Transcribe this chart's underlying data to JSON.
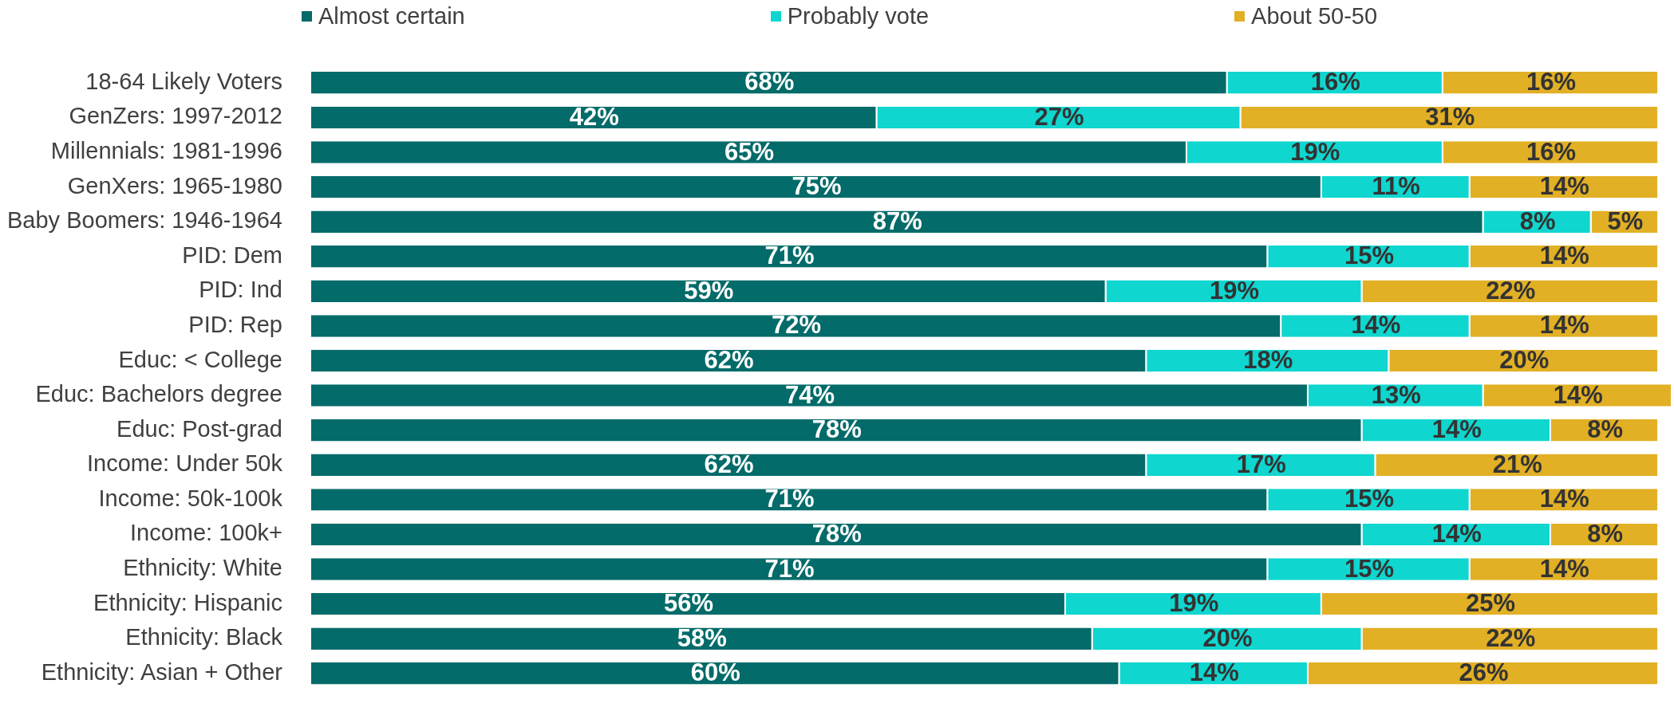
{
  "chart_data": {
    "type": "bar",
    "orientation": "horizontal",
    "stacked": true,
    "legend": "top",
    "tick_labels": "y",
    "xlim": [
      0,
      101
    ],
    "categories": [
      "18-64 Likely Voters",
      "GenZers: 1997-2012",
      "Millennials: 1981-1996",
      "GenXers: 1965-1980",
      "Baby Boomers: 1946-1964",
      "PID: Dem",
      "PID: Ind",
      "PID: Rep",
      "Educ: < College",
      "Educ: Bachelors degree",
      "Educ: Post-grad",
      "Income: Under 50k",
      "Income: 50k-100k",
      "Income: 100k+",
      "Ethnicity: White",
      "Ethnicity: Hispanic",
      "Ethnicity: Black",
      "Ethnicity: Asian + Other"
    ],
    "series": [
      {
        "name": "Almost certain",
        "color": "#036b69",
        "values": [
          68,
          42,
          65,
          75,
          87,
          71,
          59,
          72,
          62,
          74,
          78,
          62,
          71,
          78,
          71,
          56,
          58,
          60
        ],
        "value_labels": [
          "68%",
          "42%",
          "65%",
          "75%",
          "87%",
          "71%",
          "59%",
          "72%",
          "62%",
          "74%",
          "78%",
          "62%",
          "71%",
          "78%",
          "71%",
          "56%",
          "58%",
          "60%"
        ]
      },
      {
        "name": "Probably vote",
        "color": "#0fd6cf",
        "values": [
          16,
          27,
          19,
          11,
          8,
          15,
          19,
          14,
          18,
          13,
          14,
          17,
          15,
          14,
          15,
          19,
          20,
          14
        ],
        "value_labels": [
          "16%",
          "27%",
          "19%",
          "11%",
          "8%",
          "15%",
          "19%",
          "14%",
          "18%",
          "13%",
          "14%",
          "17%",
          "15%",
          "14%",
          "15%",
          "19%",
          "20%",
          "14%"
        ]
      },
      {
        "name": "About 50-50",
        "color": "#e2b025",
        "values": [
          16,
          31,
          16,
          14,
          5,
          14,
          22,
          14,
          20,
          14,
          8,
          21,
          14,
          8,
          14,
          25,
          22,
          26
        ],
        "value_labels": [
          "16%",
          "31%",
          "16%",
          "14%",
          "5%",
          "14%",
          "22%",
          "14%",
          "20%",
          "14%",
          "8%",
          "21%",
          "14%",
          "8%",
          "14%",
          "25%",
          "22%",
          "26%"
        ]
      }
    ]
  }
}
